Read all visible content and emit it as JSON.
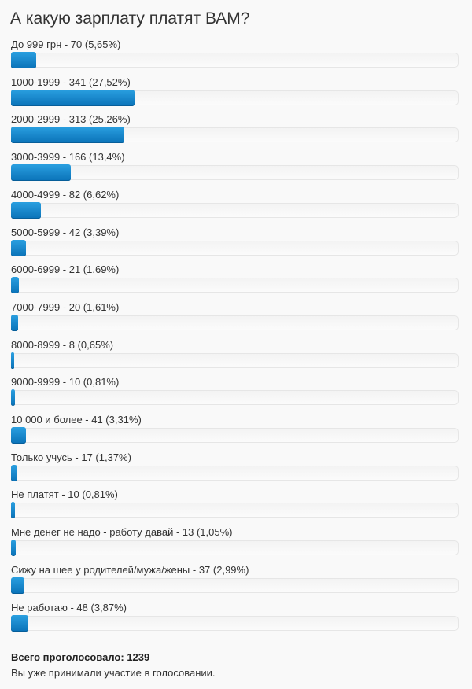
{
  "poll": {
    "title": "А какую зарплату платят ВАМ?",
    "options": [
      {
        "label": "До 999 грн - 70 (5,65%)",
        "percent": 5.65
      },
      {
        "label": "1000-1999 - 341 (27,52%)",
        "percent": 27.52
      },
      {
        "label": "2000-2999 - 313 (25,26%)",
        "percent": 25.26
      },
      {
        "label": "3000-3999 - 166 (13,4%)",
        "percent": 13.4
      },
      {
        "label": "4000-4999 - 82 (6,62%)",
        "percent": 6.62
      },
      {
        "label": "5000-5999 - 42 (3,39%)",
        "percent": 3.39
      },
      {
        "label": "6000-6999 - 21 (1,69%)",
        "percent": 1.69
      },
      {
        "label": "7000-7999 - 20 (1,61%)",
        "percent": 1.61
      },
      {
        "label": "8000-8999 - 8 (0,65%)",
        "percent": 0.65
      },
      {
        "label": "9000-9999 - 10 (0,81%)",
        "percent": 0.81
      },
      {
        "label": "10 000 и более - 41 (3,31%)",
        "percent": 3.31
      },
      {
        "label": "Только учусь - 17 (1,37%)",
        "percent": 1.37
      },
      {
        "label": "Не платят - 10 (0,81%)",
        "percent": 0.81
      },
      {
        "label": "Мне денег не надо - работу давай - 13 (1,05%)",
        "percent": 1.05
      },
      {
        "label": "Сижу на шее у родителей/мужа/жены - 37 (2,99%)",
        "percent": 2.99
      },
      {
        "label": "Не работаю - 48 (3,87%)",
        "percent": 3.87
      }
    ],
    "total_label": "Всего проголосовало:",
    "total": 1239,
    "note": "Вы уже принимали участие в голосовании."
  }
}
